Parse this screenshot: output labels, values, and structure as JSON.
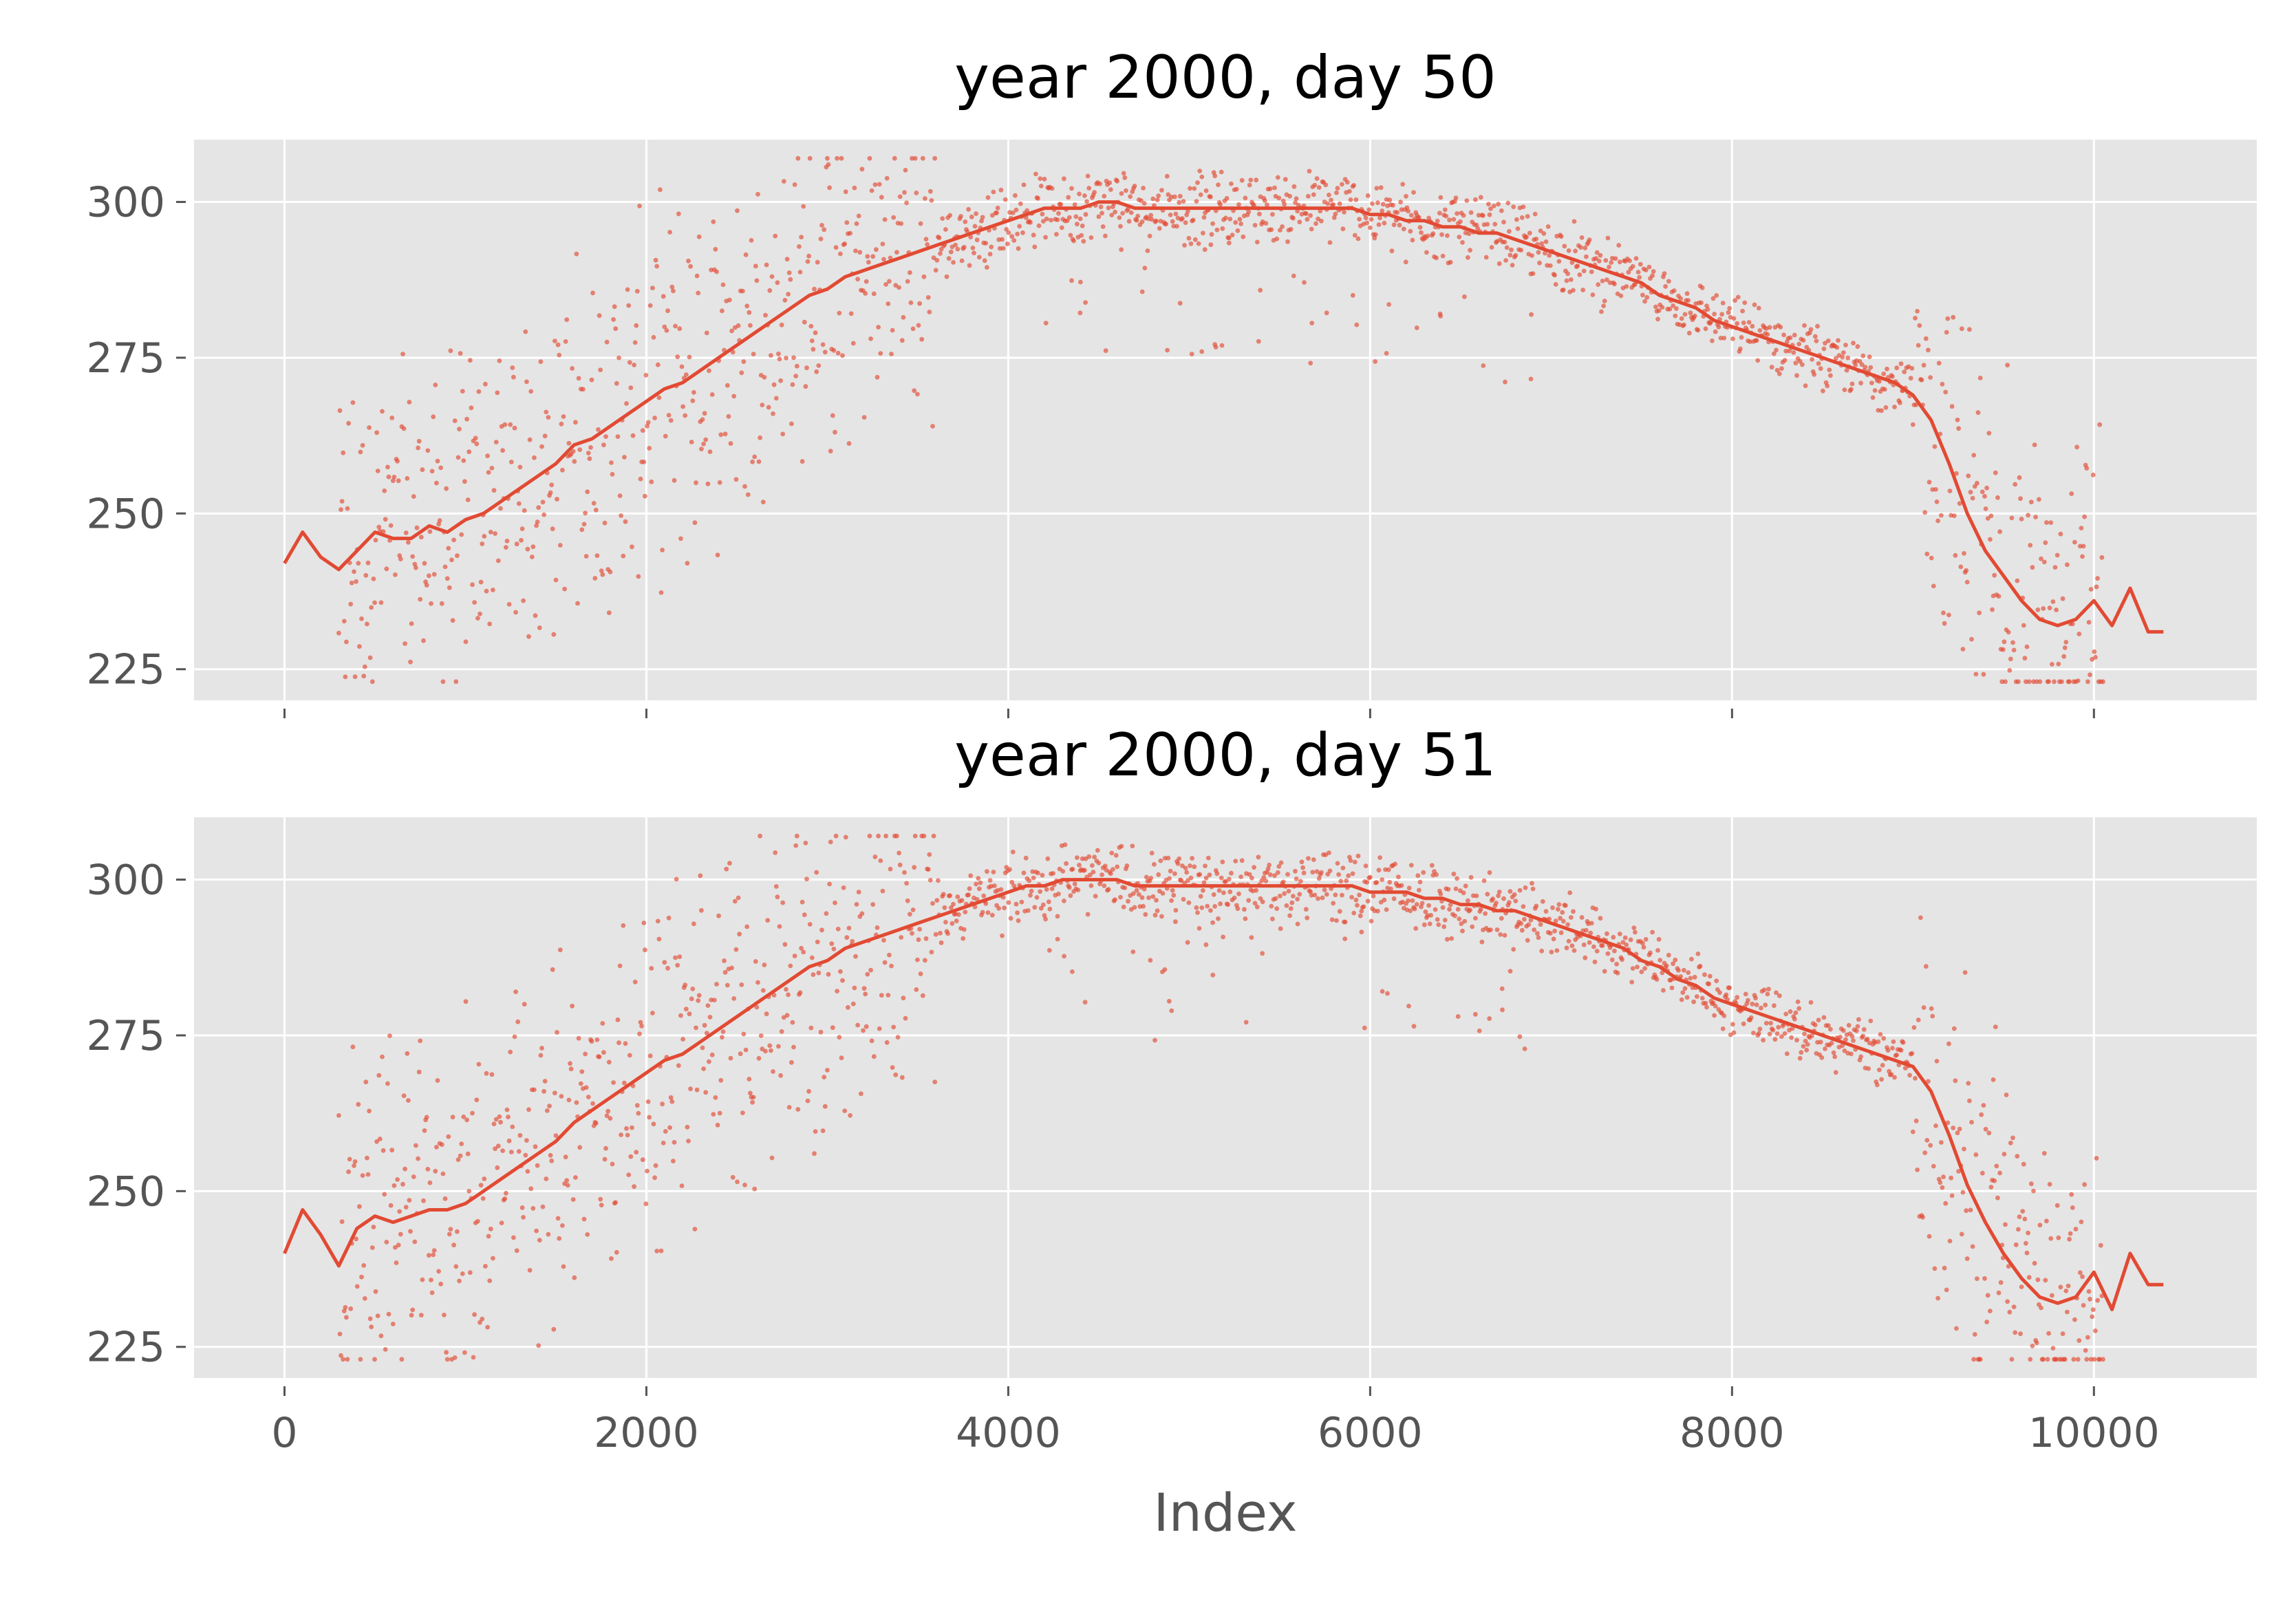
{
  "chart_data": [
    {
      "type": "line",
      "title": "year 2000, day 50",
      "xlabel": "",
      "ylabel": "",
      "xlim": [
        -500,
        10900
      ],
      "ylim": [
        220,
        310
      ],
      "xticks": [
        0,
        2000,
        4000,
        6000,
        8000,
        10000
      ],
      "xtick_labels": [],
      "yticks": [
        225,
        250,
        275,
        300
      ],
      "ytick_labels": [
        "225",
        "250",
        "275",
        "300"
      ],
      "grid": true,
      "series": [
        {
          "x": [
            0,
            100,
            200,
            300,
            400,
            500,
            600,
            700,
            800,
            900,
            1000,
            1100,
            1200,
            1300,
            1400,
            1500,
            1600,
            1700,
            1800,
            1900,
            2000,
            2100,
            2200,
            2300,
            2400,
            2500,
            2600,
            2700,
            2800,
            2900,
            3000,
            3100,
            3200,
            3300,
            3400,
            3500,
            3600,
            3700,
            3800,
            3900,
            4000,
            4100,
            4200,
            4300,
            4400,
            4500,
            4600,
            4700,
            4800,
            4900,
            5000,
            5100,
            5200,
            5300,
            5400,
            5500,
            5600,
            5700,
            5800,
            5900,
            6000,
            6100,
            6200,
            6300,
            6400,
            6500,
            6600,
            6700,
            6800,
            6900,
            7000,
            7100,
            7200,
            7300,
            7400,
            7500,
            7600,
            7700,
            7800,
            7900,
            8000,
            8100,
            8200,
            8300,
            8400,
            8500,
            8600,
            8700,
            8800,
            8900,
            9000,
            9100,
            9200,
            9300,
            9400,
            9500,
            9600,
            9700,
            9800,
            9900,
            10000,
            10100,
            10200,
            10300,
            10384
          ],
          "y": [
            242,
            247,
            243,
            241,
            244,
            247,
            246,
            246,
            248,
            247,
            249,
            250,
            252,
            254,
            256,
            258,
            261,
            262,
            264,
            266,
            268,
            270,
            271,
            273,
            275,
            277,
            279,
            281,
            283,
            285,
            286,
            288,
            289,
            290,
            291,
            292,
            293,
            294,
            295,
            296,
            297,
            298,
            299,
            299,
            299,
            300,
            300,
            299,
            299,
            299,
            299,
            299,
            299,
            299,
            299,
            299,
            299,
            299,
            299,
            299,
            298,
            298,
            297,
            297,
            296,
            296,
            295,
            295,
            294,
            293,
            292,
            291,
            290,
            289,
            288,
            287,
            285,
            284,
            283,
            281,
            280,
            279,
            278,
            277,
            276,
            275,
            274,
            273,
            272,
            271,
            269,
            265,
            258,
            250,
            244,
            240,
            236,
            233,
            232,
            233,
            236,
            232,
            238,
            231,
            231
          ]
        }
      ]
    },
    {
      "type": "line",
      "title": "year 2000, day 51",
      "xlabel": "Index",
      "ylabel": "",
      "xlim": [
        -500,
        10900
      ],
      "ylim": [
        220,
        310
      ],
      "xticks": [
        0,
        2000,
        4000,
        6000,
        8000,
        10000
      ],
      "xtick_labels": [
        "0",
        "2000",
        "4000",
        "6000",
        "8000",
        "10000"
      ],
      "yticks": [
        225,
        250,
        275,
        300
      ],
      "ytick_labels": [
        "225",
        "250",
        "275",
        "300"
      ],
      "grid": true,
      "series": [
        {
          "x": [
            0,
            100,
            200,
            300,
            400,
            500,
            600,
            700,
            800,
            900,
            1000,
            1100,
            1200,
            1300,
            1400,
            1500,
            1600,
            1700,
            1800,
            1900,
            2000,
            2100,
            2200,
            2300,
            2400,
            2500,
            2600,
            2700,
            2800,
            2900,
            3000,
            3100,
            3200,
            3300,
            3400,
            3500,
            3600,
            3700,
            3800,
            3900,
            4000,
            4100,
            4200,
            4300,
            4400,
            4500,
            4600,
            4700,
            4800,
            4900,
            5000,
            5100,
            5200,
            5300,
            5400,
            5500,
            5600,
            5700,
            5800,
            5900,
            6000,
            6100,
            6200,
            6300,
            6400,
            6500,
            6600,
            6700,
            6800,
            6900,
            7000,
            7100,
            7200,
            7300,
            7400,
            7500,
            7600,
            7700,
            7800,
            7900,
            8000,
            8100,
            8200,
            8300,
            8400,
            8500,
            8600,
            8700,
            8800,
            8900,
            9000,
            9100,
            9200,
            9300,
            9400,
            9500,
            9600,
            9700,
            9800,
            9900,
            10000,
            10100,
            10200,
            10300,
            10384
          ],
          "y": [
            240,
            247,
            243,
            238,
            244,
            246,
            245,
            246,
            247,
            247,
            248,
            250,
            252,
            254,
            256,
            258,
            261,
            263,
            265,
            267,
            269,
            271,
            272,
            274,
            276,
            278,
            280,
            282,
            284,
            286,
            287,
            289,
            290,
            291,
            292,
            293,
            294,
            295,
            296,
            297,
            298,
            299,
            299,
            300,
            300,
            300,
            300,
            299,
            299,
            299,
            299,
            299,
            299,
            299,
            299,
            299,
            299,
            299,
            299,
            299,
            298,
            298,
            298,
            297,
            297,
            296,
            296,
            295,
            295,
            294,
            293,
            292,
            291,
            290,
            289,
            287,
            286,
            284,
            283,
            281,
            280,
            279,
            278,
            277,
            276,
            275,
            274,
            273,
            272,
            271,
            270,
            266,
            259,
            251,
            245,
            240,
            236,
            233,
            232,
            233,
            237,
            231,
            240,
            235,
            235
          ]
        }
      ]
    }
  ]
}
